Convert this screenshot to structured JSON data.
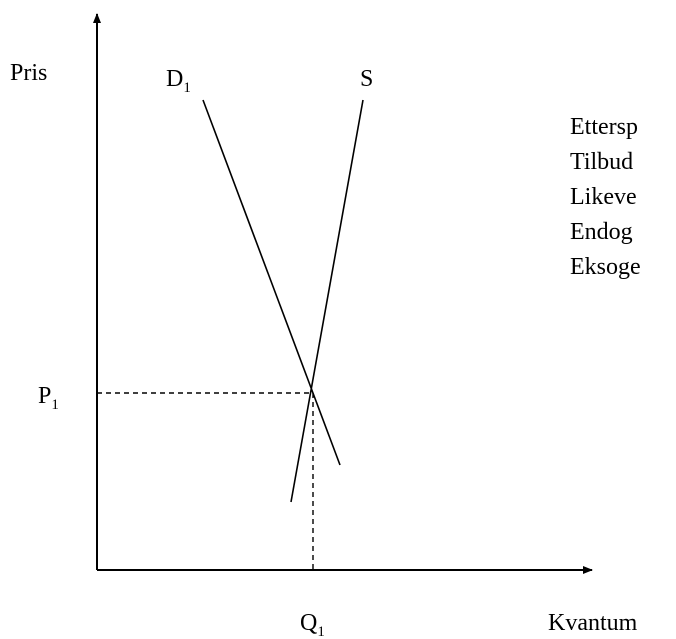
{
  "axes": {
    "y_label": "Pris",
    "x_label": "Kvantum"
  },
  "curves": {
    "demand": {
      "letter": "D",
      "sub": "1"
    },
    "supply": {
      "letter": "S"
    }
  },
  "equilibrium": {
    "price": {
      "letter": "P",
      "sub": "1"
    },
    "quantity": {
      "letter": "Q",
      "sub": "1"
    }
  },
  "list": [
    "Ettersp",
    "Tilbud",
    "Likeve",
    "Endog",
    "Eksoge"
  ]
}
